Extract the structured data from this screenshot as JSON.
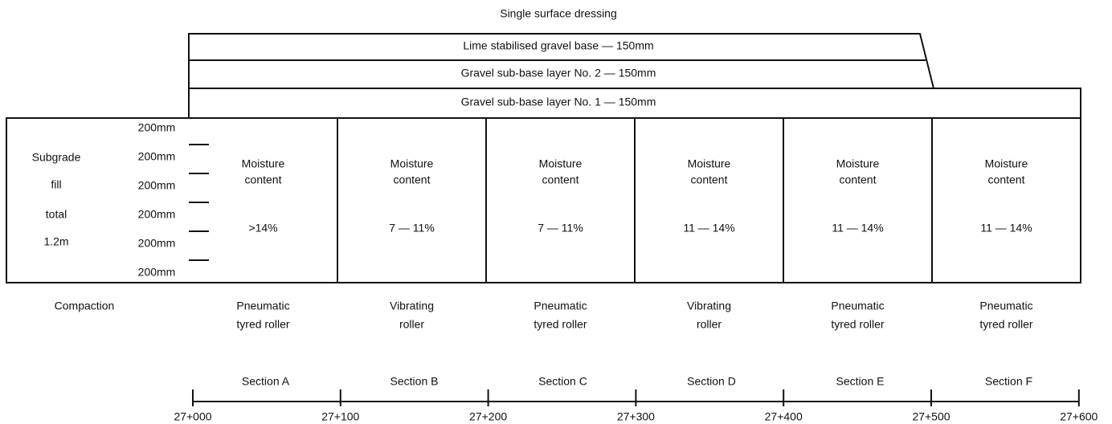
{
  "title": "Single surface dressing",
  "layers": [
    "Lime stabilised gravel base  —  150mm",
    "Gravel sub-base layer No. 2  —  150mm",
    "Gravel sub-base layer No. 1  —  150mm"
  ],
  "subgrade": {
    "labels": [
      "Subgrade",
      "fill",
      "total",
      "1.2m"
    ],
    "thicknesses": [
      "200mm",
      "200mm",
      "200mm",
      "200mm",
      "200mm",
      "200mm"
    ]
  },
  "compaction_label": "Compaction",
  "sections": [
    {
      "name": "Section A",
      "moisture_label": [
        "Moisture",
        "content"
      ],
      "moisture": ">14%",
      "compaction": [
        "Pneumatic",
        "tyred roller"
      ]
    },
    {
      "name": "Section B",
      "moisture_label": [
        "Moisture",
        "content"
      ],
      "moisture": "7 — 11%",
      "compaction": [
        "Vibrating",
        "roller"
      ]
    },
    {
      "name": "Section C",
      "moisture_label": [
        "Moisture",
        "content"
      ],
      "moisture": "7 — 11%",
      "compaction": [
        "Pneumatic",
        "tyred roller"
      ]
    },
    {
      "name": "Section D",
      "moisture_label": [
        "Moisture",
        "content"
      ],
      "moisture": "11 — 14%",
      "compaction": [
        "Vibrating",
        "roller"
      ]
    },
    {
      "name": "Section E",
      "moisture_label": [
        "Moisture",
        "content"
      ],
      "moisture": "11 — 14%",
      "compaction": [
        "Pneumatic",
        "tyred roller"
      ]
    },
    {
      "name": "Section F",
      "moisture_label": [
        "Moisture",
        "content"
      ],
      "moisture": "11 — 14%",
      "compaction": [
        "Pneumatic",
        "tyred roller"
      ]
    }
  ],
  "chainages": [
    "27+000",
    "27+100",
    "27+200",
    "27+300",
    "27+400",
    "27+500",
    "27+600"
  ]
}
